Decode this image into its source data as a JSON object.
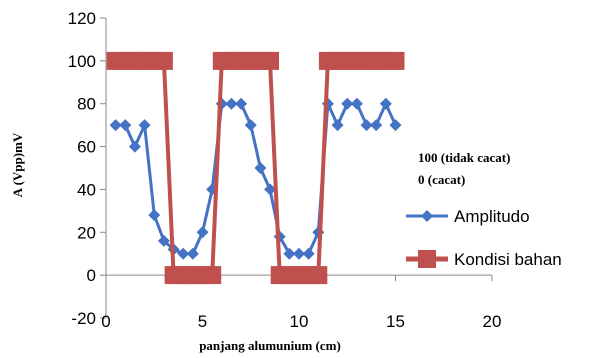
{
  "chart_data": {
    "type": "line",
    "xlabel": "panjang alumunium  (cm)",
    "ylabel": "A (Vpp)mV",
    "xlim": [
      0,
      20
    ],
    "ylim": [
      -20,
      120
    ],
    "x_ticks": [
      "0",
      "5",
      "10",
      "15",
      "20"
    ],
    "y_ticks": [
      "-20",
      "0",
      "20",
      "40",
      "60",
      "80",
      "100",
      "120"
    ],
    "annotations": [
      "100  (tidak cacat)",
      "0   (cacat)"
    ],
    "legend_position": "right",
    "series": [
      {
        "name": "Amplitudo",
        "color": "#4472C4",
        "marker": "diamond",
        "points": [
          [
            0.5,
            70
          ],
          [
            1,
            70
          ],
          [
            1.5,
            60
          ],
          [
            2,
            70
          ],
          [
            2.5,
            28
          ],
          [
            3,
            16
          ],
          [
            3.5,
            12
          ],
          [
            4,
            10
          ],
          [
            4.5,
            10
          ],
          [
            5,
            20
          ],
          [
            5.5,
            40
          ],
          [
            6,
            80
          ],
          [
            6.5,
            80
          ],
          [
            7,
            80
          ],
          [
            7.5,
            70
          ],
          [
            8,
            50
          ],
          [
            8.5,
            40
          ],
          [
            9,
            18
          ],
          [
            9.5,
            10
          ],
          [
            10,
            10
          ],
          [
            10.5,
            10
          ],
          [
            11,
            20
          ],
          [
            11.5,
            80
          ],
          [
            12,
            70
          ],
          [
            12.5,
            80
          ],
          [
            13,
            80
          ],
          [
            13.5,
            70
          ],
          [
            14,
            70
          ],
          [
            14.5,
            80
          ],
          [
            15,
            70
          ]
        ]
      },
      {
        "name": "Kondisi bahan",
        "color": "#C0504D",
        "marker": "square",
        "points": [
          [
            0.5,
            100
          ],
          [
            1,
            100
          ],
          [
            1.5,
            100
          ],
          [
            2,
            100
          ],
          [
            2.5,
            100
          ],
          [
            3,
            100
          ],
          [
            3.5,
            0
          ],
          [
            4,
            0
          ],
          [
            4.5,
            0
          ],
          [
            5,
            0
          ],
          [
            5.5,
            0
          ],
          [
            6,
            100
          ],
          [
            6.5,
            100
          ],
          [
            7,
            100
          ],
          [
            7.5,
            100
          ],
          [
            8,
            100
          ],
          [
            8.5,
            100
          ],
          [
            9,
            0
          ],
          [
            9.5,
            0
          ],
          [
            10,
            0
          ],
          [
            10.5,
            0
          ],
          [
            11,
            0
          ],
          [
            11.5,
            100
          ],
          [
            12,
            100
          ],
          [
            12.5,
            100
          ],
          [
            13,
            100
          ],
          [
            13.5,
            100
          ],
          [
            14,
            100
          ],
          [
            14.5,
            100
          ],
          [
            15,
            100
          ]
        ]
      }
    ]
  }
}
